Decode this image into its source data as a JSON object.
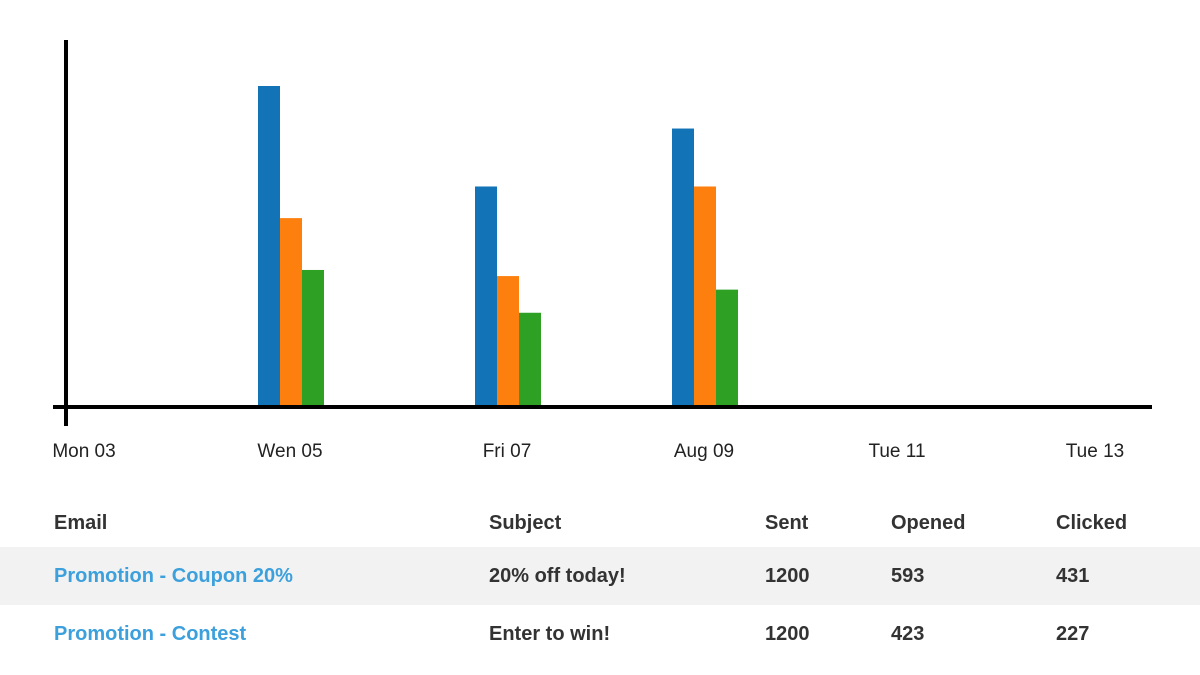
{
  "chart_data": {
    "type": "bar",
    "categories": [
      "Mon 03",
      "Wen 05",
      "Fri 07",
      "Aug 09",
      "Tue 11",
      "Tue 13"
    ],
    "series": [
      {
        "values": [
          0,
          1200,
          822,
          1040,
          0,
          0
        ],
        "color": "#1273b7"
      },
      {
        "values": [
          0,
          703,
          485,
          822,
          0,
          0
        ],
        "color": "#fd7f0e"
      },
      {
        "values": [
          0,
          508,
          347,
          434,
          0,
          0
        ],
        "color": "#2ea125"
      }
    ],
    "ylim": [
      0,
      1200
    ],
    "grid": false,
    "title": "",
    "xlabel": "",
    "ylabel": ""
  },
  "table": {
    "headers": {
      "email": "Email",
      "subject": "Subject",
      "sent": "Sent",
      "opened": "Opened",
      "clicked": "Clicked"
    },
    "rows": [
      {
        "email": "Promotion - Coupon 20%",
        "subject": "20% off today!",
        "sent": "1200",
        "opened": "593",
        "clicked": "431"
      },
      {
        "email": "Promotion - Contest",
        "subject": "Enter to win!",
        "sent": "1200",
        "opened": "423",
        "clicked": "227"
      }
    ],
    "link_color": "#3ca0dc",
    "shaded_row_color": "#f2f2f2"
  }
}
